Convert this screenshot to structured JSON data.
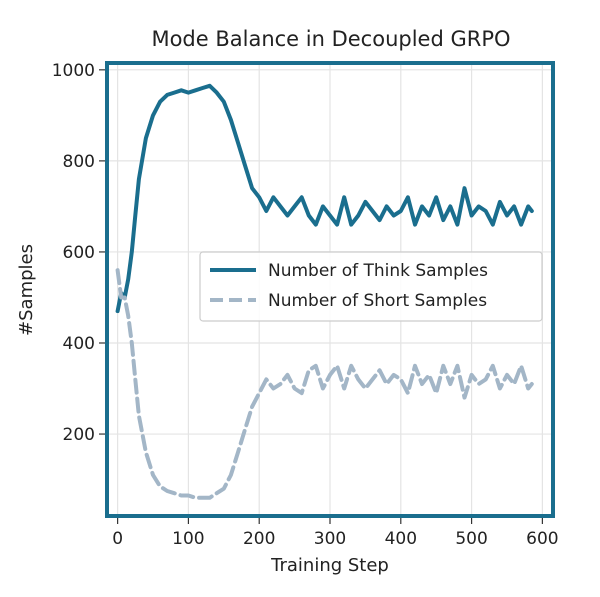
{
  "chart_data": {
    "type": "line",
    "title": "Mode Balance in Decoupled GRPO",
    "xlabel": "Training Step",
    "ylabel": "#Samples",
    "xlim": [
      -15,
      615
    ],
    "ylim": [
      20,
      1015
    ],
    "xticks": [
      0,
      100,
      200,
      300,
      400,
      500,
      600
    ],
    "yticks": [
      200,
      400,
      600,
      800,
      1000
    ],
    "grid": true,
    "legend_position": "center-right",
    "x": [
      0,
      5,
      10,
      15,
      20,
      25,
      30,
      40,
      50,
      60,
      70,
      80,
      90,
      100,
      110,
      120,
      130,
      140,
      150,
      160,
      170,
      180,
      190,
      200,
      210,
      220,
      230,
      240,
      250,
      260,
      270,
      280,
      290,
      300,
      310,
      320,
      330,
      340,
      350,
      360,
      370,
      380,
      390,
      400,
      410,
      420,
      430,
      440,
      450,
      460,
      470,
      480,
      490,
      500,
      510,
      520,
      530,
      540,
      550,
      560,
      570,
      580,
      585
    ],
    "series": [
      {
        "name": "Number of Think Samples",
        "color": "#1a6e8e",
        "style": "solid",
        "values": [
          470,
          510,
          500,
          540,
          600,
          680,
          760,
          850,
          900,
          930,
          945,
          950,
          955,
          950,
          955,
          960,
          965,
          950,
          930,
          890,
          840,
          790,
          740,
          720,
          690,
          720,
          700,
          680,
          700,
          720,
          680,
          660,
          700,
          680,
          660,
          720,
          660,
          680,
          710,
          690,
          670,
          700,
          680,
          690,
          720,
          660,
          700,
          680,
          720,
          670,
          700,
          660,
          740,
          680,
          700,
          690,
          660,
          710,
          680,
          700,
          660,
          700,
          690
        ]
      },
      {
        "name": "Number of Short Samples",
        "color": "#a3b6c7",
        "style": "dashed",
        "values": [
          560,
          500,
          500,
          460,
          400,
          320,
          240,
          160,
          110,
          85,
          75,
          70,
          65,
          65,
          60,
          60,
          60,
          70,
          80,
          110,
          160,
          210,
          260,
          290,
          320,
          300,
          310,
          330,
          300,
          290,
          340,
          350,
          300,
          330,
          350,
          300,
          350,
          320,
          300,
          320,
          340,
          310,
          330,
          320,
          290,
          350,
          310,
          330,
          290,
          350,
          310,
          350,
          280,
          330,
          310,
          320,
          350,
          300,
          330,
          310,
          350,
          300,
          310
        ]
      }
    ]
  }
}
